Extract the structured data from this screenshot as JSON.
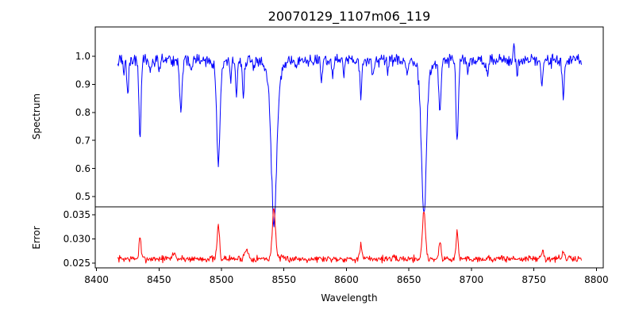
{
  "figure": {
    "title": "20070129_1107m06_119",
    "xlabel": "Wavelength",
    "background": "#ffffff",
    "spine_color": "#000000"
  },
  "chart_data": [
    {
      "type": "line",
      "panel": "spectrum",
      "ylabel": "Spectrum",
      "line_color": "#0000ff",
      "xlim": [
        8399.0,
        8805.5
      ],
      "ylim": [
        0.4633,
        1.1045
      ],
      "yticks": {
        "values": [
          1.0,
          0.9,
          0.8,
          0.7,
          0.6,
          0.5
        ],
        "labels": [
          "1.0",
          "0.9",
          "0.8",
          "0.7",
          "0.6",
          "0.5"
        ]
      },
      "data_x_start": 8417.0,
      "data_x_end": 8788.0,
      "data_x_step": 0.5,
      "continuum": 0.985,
      "noise_sigma": 0.011,
      "noise_seed": 42,
      "absorption_lines": [
        {
          "center": 8422.0,
          "depth": 0.05,
          "width": 0.8
        },
        {
          "center": 8425.0,
          "depth": 0.115,
          "width": 1.0
        },
        {
          "center": 8434.8,
          "depth": 0.27,
          "width": 1.2
        },
        {
          "center": 8443.0,
          "depth": 0.06,
          "width": 0.9
        },
        {
          "center": 8450.5,
          "depth": 0.04,
          "width": 0.8
        },
        {
          "center": 8467.5,
          "depth": 0.175,
          "width": 1.4
        },
        {
          "center": 8476.0,
          "depth": 0.04,
          "width": 0.8
        },
        {
          "center": 8497.5,
          "depth": 0.33,
          "width": 1.7
        },
        {
          "center": 8497.5,
          "depth": 0.05,
          "width": 3.7
        },
        {
          "center": 8507.5,
          "depth": 0.075,
          "width": 0.9
        },
        {
          "center": 8512.0,
          "depth": 0.135,
          "width": 1.0
        },
        {
          "center": 8517.5,
          "depth": 0.135,
          "width": 1.0
        },
        {
          "center": 8526.0,
          "depth": 0.04,
          "width": 0.8
        },
        {
          "center": 8542.0,
          "depth": 0.49,
          "width": 2.9
        },
        {
          "center": 8542.0,
          "depth": 0.09,
          "width": 6.5
        },
        {
          "center": 8560.0,
          "depth": 0.035,
          "width": 0.8
        },
        {
          "center": 8580.0,
          "depth": 0.085,
          "width": 0.9
        },
        {
          "center": 8589.0,
          "depth": 0.07,
          "width": 0.8
        },
        {
          "center": 8598.0,
          "depth": 0.05,
          "width": 0.8
        },
        {
          "center": 8611.5,
          "depth": 0.13,
          "width": 1.0
        },
        {
          "center": 8621.0,
          "depth": 0.065,
          "width": 0.9
        },
        {
          "center": 8633.0,
          "depth": 0.04,
          "width": 0.8
        },
        {
          "center": 8648.5,
          "depth": 0.055,
          "width": 0.9
        },
        {
          "center": 8662.0,
          "depth": 0.47,
          "width": 2.6
        },
        {
          "center": 8662.0,
          "depth": 0.08,
          "width": 5.5
        },
        {
          "center": 8674.8,
          "depth": 0.185,
          "width": 1.2
        },
        {
          "center": 8688.6,
          "depth": 0.3,
          "width": 1.3
        },
        {
          "center": 8697.0,
          "depth": 0.04,
          "width": 0.8
        },
        {
          "center": 8713.0,
          "depth": 0.055,
          "width": 0.9
        },
        {
          "center": 8736.5,
          "depth": 0.05,
          "width": 0.8
        },
        {
          "center": 8756.5,
          "depth": 0.1,
          "width": 1.1
        },
        {
          "center": 8773.5,
          "depth": 0.115,
          "width": 1.1
        }
      ],
      "emission_spikes": [
        {
          "center": 8734.0,
          "height": 0.055,
          "width": 0.6
        }
      ]
    },
    {
      "type": "line",
      "panel": "error",
      "ylabel": "Error",
      "line_color": "#ff0000",
      "xlim": [
        8399.0,
        8805.5
      ],
      "ylim": [
        0.024016,
        0.036639
      ],
      "yticks": {
        "values": [
          0.035,
          0.03,
          0.025
        ],
        "labels": [
          "0.035",
          "0.030",
          "0.025"
        ]
      },
      "data_x_start": 8417.0,
      "data_x_end": 8788.0,
      "data_x_step": 0.5,
      "baseline": 0.0259,
      "noise_sigma": 0.00035,
      "noise_seed": 7,
      "peaks": [
        {
          "center": 8434.8,
          "height": 0.0045,
          "width": 1.1
        },
        {
          "center": 8462.0,
          "height": 0.0013,
          "width": 1.5
        },
        {
          "center": 8497.5,
          "height": 0.007,
          "width": 1.3
        },
        {
          "center": 8520.0,
          "height": 0.0018,
          "width": 2.2
        },
        {
          "center": 8542.0,
          "height": 0.0104,
          "width": 1.8
        },
        {
          "center": 8611.5,
          "height": 0.0028,
          "width": 1.1
        },
        {
          "center": 8662.0,
          "height": 0.0099,
          "width": 1.7
        },
        {
          "center": 8674.8,
          "height": 0.0036,
          "width": 1.1
        },
        {
          "center": 8688.6,
          "height": 0.0058,
          "width": 1.1
        },
        {
          "center": 8757.0,
          "height": 0.0013,
          "width": 1.6
        },
        {
          "center": 8773.5,
          "height": 0.0014,
          "width": 1.3
        }
      ]
    }
  ],
  "x_axis": {
    "ticks": {
      "values": [
        8400,
        8450,
        8500,
        8550,
        8600,
        8650,
        8700,
        8750,
        8800
      ],
      "labels": [
        "8400",
        "8450",
        "8500",
        "8550",
        "8600",
        "8650",
        "8700",
        "8750",
        "8800"
      ]
    }
  }
}
